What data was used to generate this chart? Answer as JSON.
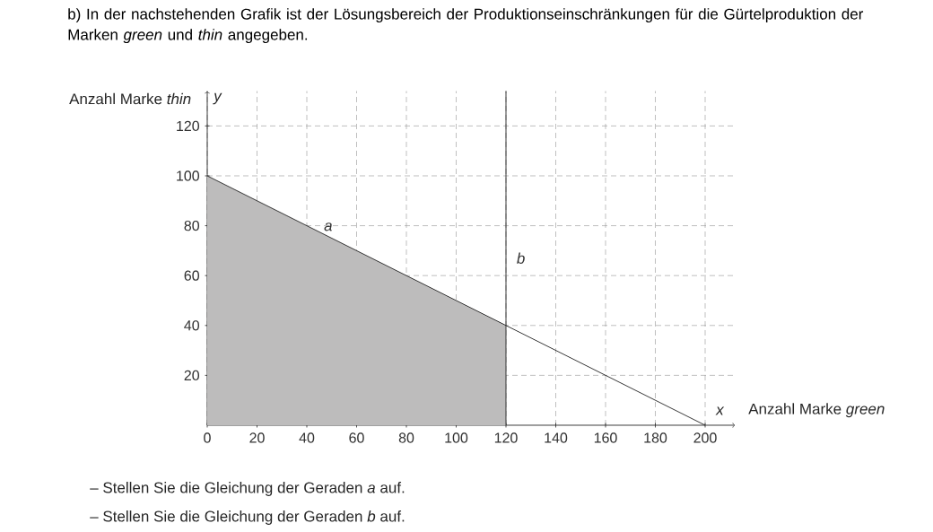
{
  "chart_data": {
    "type": "line",
    "title": "b) In der nachstehenden Grafik ist der Lösungsbereich der Produktionseinschränkungen für die Gürtelproduktion der Marken *green* und *thin* angegeben.",
    "xlabel": "Anzahl Marke *green*",
    "ylabel": "Anzahl Marke *thin*",
    "annotations": [
      "x",
      "y",
      "– Stellen Sie die Gleichung der Geraden *a* auf.",
      "– Stellen Sie die Gleichung der Geraden *b* auf."
    ],
    "series": [
      {
        "type": "area",
        "color": "#bdbcbc",
        "x": [
          0,
          120
        ],
        "values": [
          100,
          40
        ]
      },
      {
        "name": "a",
        "color": "#222222",
        "x": [
          0,
          200
        ],
        "values": [
          100,
          0
        ]
      }
    ],
    "ref_lines": [
      {
        "axis": "x",
        "value": 120,
        "label": "b",
        "color": "#222222",
        "line_style": "solid"
      }
    ],
    "xlim": [
      0,
      212
    ],
    "ylim": [
      0,
      134
    ],
    "xticks": [
      0,
      20,
      40,
      60,
      80,
      100,
      120,
      140,
      160,
      180,
      200
    ],
    "yticks": [
      20,
      40,
      60,
      80,
      100,
      120
    ],
    "grid": true,
    "marker": "none"
  }
}
